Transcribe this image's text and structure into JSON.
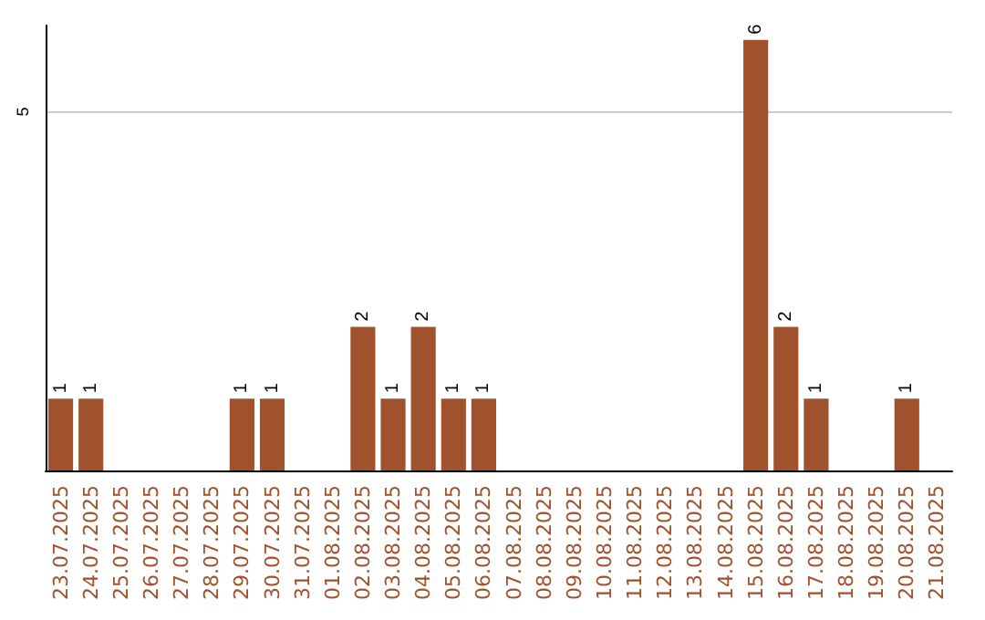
{
  "chart_data": {
    "type": "bar",
    "categories": [
      "23.07.2025",
      "24.07.2025",
      "25.07.2025",
      "26.07.2025",
      "27.07.2025",
      "28.07.2025",
      "29.07.2025",
      "30.07.2025",
      "31.07.2025",
      "01.08.2025",
      "02.08.2025",
      "03.08.2025",
      "04.08.2025",
      "05.08.2025",
      "06.08.2025",
      "07.08.2025",
      "08.08.2025",
      "09.08.2025",
      "10.08.2025",
      "11.08.2025",
      "12.08.2025",
      "13.08.2025",
      "14.08.2025",
      "15.08.2025",
      "16.08.2025",
      "17.08.2025",
      "18.08.2025",
      "19.08.2025",
      "20.08.2025",
      "21.08.2025"
    ],
    "values": [
      1,
      1,
      0,
      0,
      0,
      0,
      1,
      1,
      0,
      0,
      2,
      1,
      2,
      1,
      1,
      0,
      0,
      0,
      0,
      0,
      0,
      0,
      0,
      6,
      2,
      1,
      0,
      0,
      1,
      0
    ],
    "value_labels": [
      "1",
      "1",
      null,
      null,
      null,
      null,
      "1",
      "1",
      null,
      null,
      "2",
      "1",
      "2",
      "1",
      "1",
      null,
      null,
      null,
      null,
      null,
      null,
      null,
      null,
      "6",
      "2",
      "1",
      null,
      null,
      "1",
      null
    ],
    "color": "#a0522d",
    "ylim": [
      0,
      6.2
    ],
    "yticks": [
      5
    ],
    "grid": "y"
  }
}
